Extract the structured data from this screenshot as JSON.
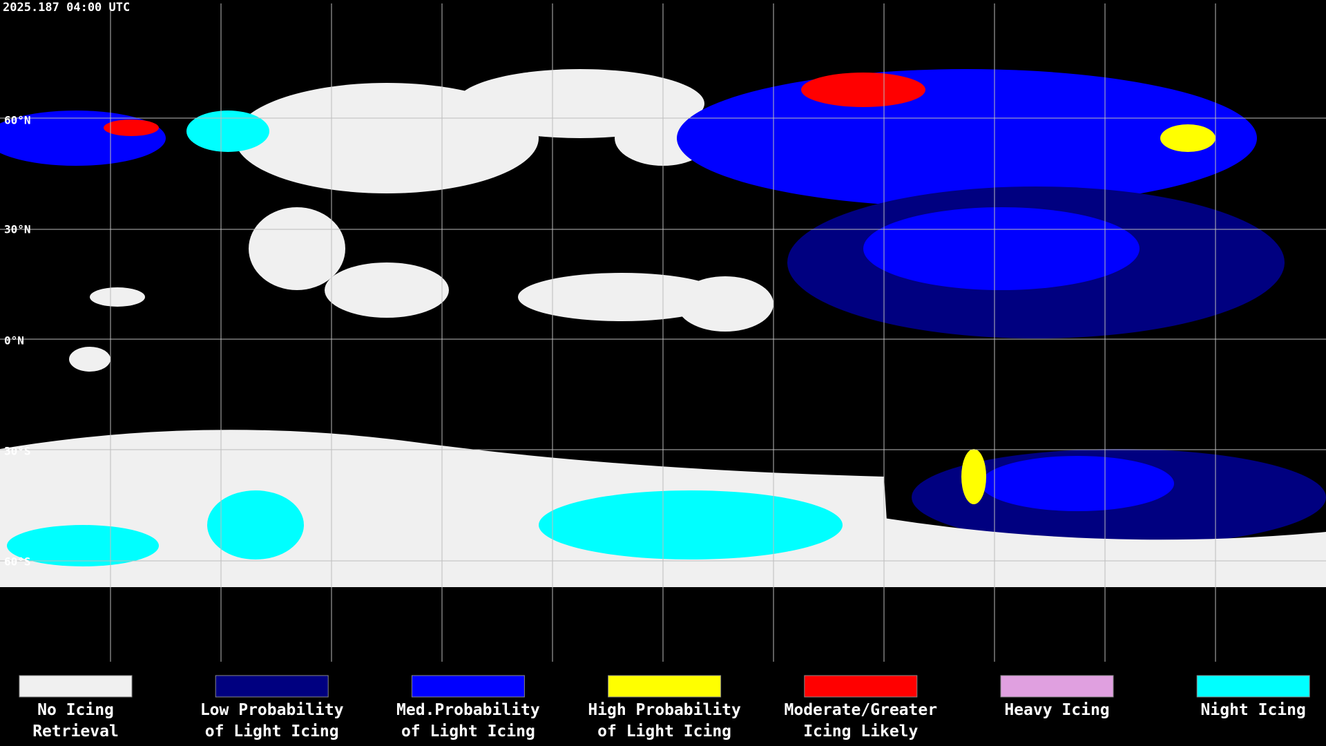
{
  "header": {
    "timestamp": "2025.187 04:00 UTC"
  },
  "map": {
    "latitude_labels": [
      "60°N",
      "30°N",
      "0°N",
      "30°S",
      "60°S"
    ]
  },
  "legend": {
    "items": [
      {
        "lines": [
          "No Icing",
          "Retrieval"
        ],
        "color": "#f0f0f0"
      },
      {
        "lines": [
          "Low Probability",
          "of Light Icing"
        ],
        "color": "#000080"
      },
      {
        "lines": [
          "Med.Probability",
          "of Light Icing"
        ],
        "color": "#0000ff"
      },
      {
        "lines": [
          "High Probability",
          "of Light Icing"
        ],
        "color": "#ffff00"
      },
      {
        "lines": [
          "Moderate/Greater",
          "Icing Likely"
        ],
        "color": "#ff0000"
      },
      {
        "lines": [
          "Heavy Icing"
        ],
        "color": "#e0a0e0"
      },
      {
        "lines": [
          "Night Icing"
        ],
        "color": "#00ffff"
      }
    ]
  }
}
